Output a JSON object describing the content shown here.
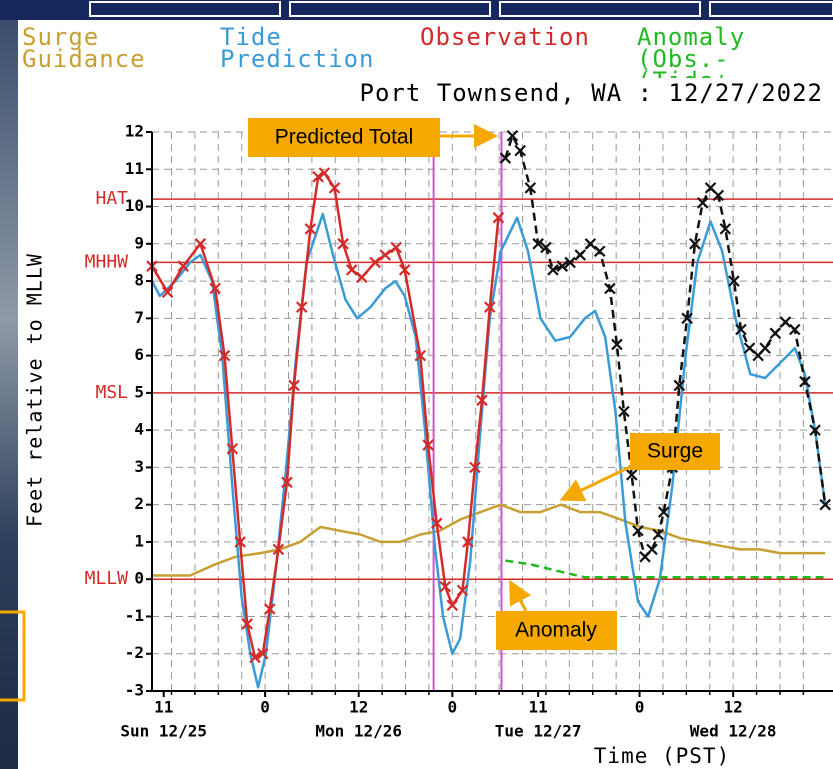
{
  "chart_data": {
    "type": "line",
    "title": "Port Townsend, WA : 12/27/2022",
    "y_label": "Feet relative to MLLW",
    "x_label": "Time (PST)",
    "xlim": [
      9.5,
      96.8
    ],
    "ylim": [
      -3,
      12
    ],
    "yticks": [
      -3,
      -2,
      -1,
      0,
      1,
      2,
      3,
      4,
      5,
      6,
      7,
      8,
      9,
      10,
      11,
      12
    ],
    "xticks": [
      {
        "value": 11,
        "label": "11"
      },
      {
        "value": 24,
        "label": "0"
      },
      {
        "value": 36,
        "label": "12"
      },
      {
        "value": 48,
        "label": "0"
      },
      {
        "value": 59,
        "label": "11"
      },
      {
        "value": 72,
        "label": "0"
      },
      {
        "value": 84,
        "label": "12"
      }
    ],
    "day_labels": [
      "Sun 12/25",
      "Mon 12/26",
      "Tue 12/27",
      "Wed 12/28"
    ],
    "xgrid": [
      12,
      15,
      18,
      21,
      24,
      27,
      30,
      33,
      36,
      39,
      42,
      45,
      48,
      51,
      54,
      57,
      60,
      63,
      66,
      69,
      72,
      75,
      78,
      81,
      84,
      87,
      90,
      93
    ],
    "grid": true,
    "vlines": [
      45.6,
      54.3
    ],
    "vline_color": "#cc55cc",
    "reference_lines": [
      {
        "label": "HAT",
        "value": 10.2
      },
      {
        "label": "MHHW",
        "value": 8.5
      },
      {
        "label": "MSL",
        "value": 5.0
      },
      {
        "label": "MLLW",
        "value": 0
      }
    ],
    "reference_color": "#d42a2a",
    "annotations": [
      "Surge",
      "Anomaly"
    ],
    "series": [
      {
        "name": "Surge Guidance",
        "color": "#c8a032",
        "legend": true,
        "x": [
          9.5,
          14.4,
          17.6,
          20.2,
          23.4,
          25.9,
          28.5,
          31.1,
          33.6,
          36.2,
          38.8,
          41.3,
          43.9,
          46.4,
          49.0,
          51.6,
          54.2,
          56.7,
          59.3,
          61.9,
          64.4,
          66.9,
          69.6,
          72.1,
          74.6,
          77.2,
          79.8,
          82.3,
          84.9,
          87.4,
          90.0,
          92.6,
          95.8
        ],
        "values": [
          0.1,
          0.1,
          0.4,
          0.6,
          0.7,
          0.8,
          1.0,
          1.4,
          1.3,
          1.2,
          1.0,
          1.0,
          1.2,
          1.3,
          1.6,
          1.8,
          2.0,
          1.8,
          1.8,
          2.0,
          1.8,
          1.8,
          1.6,
          1.4,
          1.3,
          1.1,
          1.0,
          0.9,
          0.8,
          0.8,
          0.7,
          0.7,
          0.7
        ]
      },
      {
        "name": "Tide Prediction",
        "color": "#3b9bd6",
        "legend": true,
        "x": [
          9.5,
          10.5,
          12.5,
          14.4,
          15.7,
          17.2,
          18.5,
          19.8,
          21.0,
          22.1,
          23.1,
          24.1,
          25.4,
          26.7,
          28.0,
          29.3,
          31.4,
          32.7,
          34.3,
          35.8,
          37.5,
          39.4,
          40.7,
          41.9,
          43.3,
          44.5,
          45.8,
          46.8,
          48.0,
          49.0,
          50.3,
          51.6,
          52.8,
          54.2,
          56.3,
          57.7,
          59.3,
          61.2,
          63.1,
          65.0,
          66.3,
          67.6,
          68.9,
          70.2,
          71.8,
          73.1,
          74.6,
          76.2,
          77.9,
          79.4,
          81.1,
          82.6,
          84.3,
          86.2,
          88.1,
          90.0,
          91.9,
          93.2,
          94.5,
          95.8
        ],
        "values": [
          8.0,
          7.6,
          8.0,
          8.5,
          8.7,
          8.0,
          6.0,
          2.5,
          -0.5,
          -2.0,
          -2.9,
          -2.0,
          0.3,
          3.0,
          6.0,
          8.5,
          9.8,
          8.7,
          7.5,
          7.0,
          7.3,
          7.8,
          8.0,
          7.6,
          6.5,
          4.0,
          0.8,
          -1.0,
          -2.0,
          -1.6,
          0.5,
          4.0,
          7.0,
          8.8,
          9.7,
          8.8,
          7.0,
          6.4,
          6.5,
          7.0,
          7.2,
          6.5,
          4.5,
          1.5,
          -0.6,
          -1.0,
          0,
          2.5,
          6.0,
          8.5,
          9.6,
          8.8,
          7.0,
          5.5,
          5.4,
          5.8,
          6.2,
          5.5,
          4.0,
          2.0
        ]
      },
      {
        "name": "Observation",
        "color": "#d42a2a",
        "legend": true,
        "markers": true,
        "x": [
          9.5,
          11.5,
          13.5,
          15.7,
          17.6,
          18.8,
          19.8,
          20.8,
          21.7,
          22.7,
          23.7,
          24.6,
          25.7,
          26.8,
          27.7,
          28.7,
          29.8,
          30.8,
          31.6,
          32.9,
          34.0,
          35.1,
          36.4,
          38.1,
          39.4,
          40.8,
          41.9,
          43.9,
          44.9,
          46.0,
          47.1,
          48.0,
          49.3,
          50.0,
          50.9,
          51.8,
          52.8,
          53.9
        ],
        "values": [
          8.4,
          7.7,
          8.4,
          9.0,
          7.8,
          6.0,
          3.5,
          1.0,
          -1.2,
          -2.1,
          -2.0,
          -0.8,
          0.8,
          2.6,
          5.2,
          7.3,
          9.4,
          10.8,
          10.9,
          10.5,
          9.0,
          8.3,
          8.1,
          8.5,
          8.7,
          8.9,
          8.3,
          6.0,
          3.6,
          1.5,
          -0.2,
          -0.7,
          -0.3,
          1.0,
          3.0,
          4.8,
          7.3,
          9.7
        ]
      },
      {
        "name": "Anomaly (Obs.-(Tide+",
        "color": "#22b922",
        "legend": true,
        "dash": true,
        "x": [
          54.8,
          58.0,
          61.9,
          65.0,
          95.8
        ],
        "values": [
          0.5,
          0.4,
          0.2,
          0.05,
          0.05
        ]
      },
      {
        "name": "Predicted Total",
        "color": "#111111",
        "legend": false,
        "dash": true,
        "markers": true,
        "x": [
          54.8,
          55.7,
          56.7,
          58.0,
          59.0,
          60.0,
          60.9,
          62.1,
          63.1,
          64.4,
          65.7,
          66.9,
          68.2,
          69.1,
          70.0,
          71.0,
          71.8,
          72.7,
          73.6,
          74.4,
          75.1,
          76.2,
          77.1,
          78.1,
          79.1,
          80.1,
          81.1,
          82.1,
          83.0,
          84.1,
          85.0,
          86.1,
          87.2,
          88.1,
          89.4,
          90.7,
          91.9,
          93.2,
          94.5,
          95.8
        ],
        "values": [
          11.3,
          11.9,
          11.5,
          10.5,
          9.0,
          8.9,
          8.3,
          8.4,
          8.5,
          8.7,
          9.0,
          8.8,
          7.8,
          6.3,
          4.5,
          2.8,
          1.3,
          0.6,
          0.8,
          1.2,
          1.8,
          3.0,
          5.2,
          7.0,
          9.0,
          10.1,
          10.5,
          10.3,
          9.4,
          8.0,
          6.7,
          6.2,
          6.0,
          6.2,
          6.6,
          6.9,
          6.7,
          5.3,
          4.0,
          2.0
        ]
      }
    ]
  }
}
